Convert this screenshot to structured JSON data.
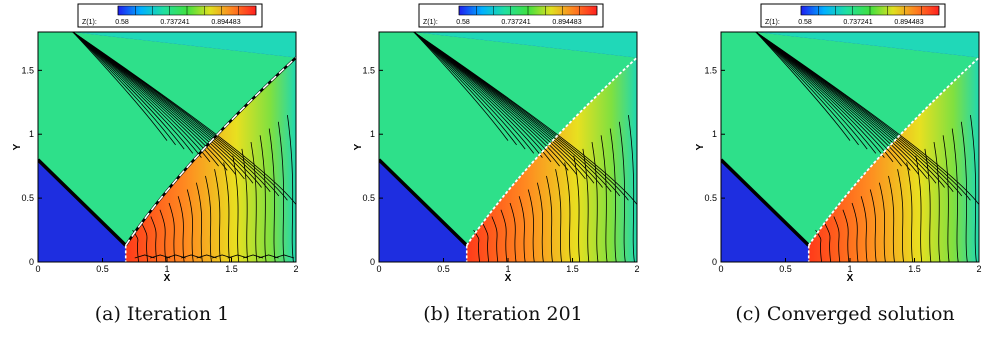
{
  "colorbar": {
    "label": "Z(1):",
    "ticks": [
      "0.58",
      "0.737241",
      "0.894483"
    ],
    "stops": [
      "#1e1ef0",
      "#00b0ff",
      "#20e0a0",
      "#40e040",
      "#e0e020",
      "#ff8020",
      "#ff2020"
    ]
  },
  "axes": {
    "xlabel": "X",
    "ylabel": "Y",
    "xticks": [
      "0",
      "0.5",
      "1",
      "1.5",
      "2"
    ],
    "yticks": [
      "0",
      "0.5",
      "1",
      "1.5"
    ]
  },
  "colors": {
    "blue_region": "#1e2ee0",
    "green_region": "#2ee08a",
    "teal_region": "#20d8b8"
  },
  "panels": [
    {
      "caption": "(a) Iteration 1"
    },
    {
      "caption": "(b) Iteration 201"
    },
    {
      "caption": "(c) Converged solution"
    }
  ]
}
